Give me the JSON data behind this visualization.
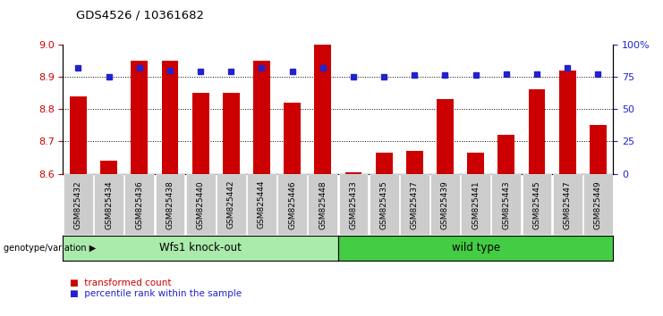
{
  "title": "GDS4526 / 10361682",
  "samples": [
    "GSM825432",
    "GSM825434",
    "GSM825436",
    "GSM825438",
    "GSM825440",
    "GSM825442",
    "GSM825444",
    "GSM825446",
    "GSM825448",
    "GSM825433",
    "GSM825435",
    "GSM825437",
    "GSM825439",
    "GSM825441",
    "GSM825443",
    "GSM825445",
    "GSM825447",
    "GSM825449"
  ],
  "bar_values": [
    8.84,
    8.64,
    8.95,
    8.95,
    8.85,
    8.85,
    8.95,
    8.82,
    9.0,
    8.605,
    8.665,
    8.67,
    8.83,
    8.665,
    8.72,
    8.86,
    8.92,
    8.75
  ],
  "dot_values": [
    82,
    75,
    82,
    80,
    79,
    79,
    82,
    79,
    82,
    75,
    75,
    76,
    76,
    76,
    77,
    77,
    82,
    77
  ],
  "ylim_left": [
    8.6,
    9.0
  ],
  "ylim_right": [
    0,
    100
  ],
  "yticks_left": [
    8.6,
    8.7,
    8.8,
    8.9,
    9.0
  ],
  "yticks_right": [
    0,
    25,
    50,
    75,
    100
  ],
  "ytick_labels_right": [
    "0",
    "25",
    "50",
    "75",
    "100%"
  ],
  "gridlines": [
    8.7,
    8.8,
    8.9
  ],
  "bar_color": "#cc0000",
  "dot_color": "#2222cc",
  "group1_label": "Wfs1 knock-out",
  "group2_label": "wild type",
  "group1_color": "#aaeaaa",
  "group2_color": "#44cc44",
  "group_label_prefix": "genotype/variation",
  "legend_bar": "transformed count",
  "legend_dot": "percentile rank within the sample",
  "n_group1": 9,
  "n_group2": 9,
  "background_color": "#ffffff",
  "plot_bg_color": "#ffffff",
  "tick_label_color_left": "#cc0000",
  "tick_label_color_right": "#2222cc",
  "tick_bg_color": "#cccccc"
}
